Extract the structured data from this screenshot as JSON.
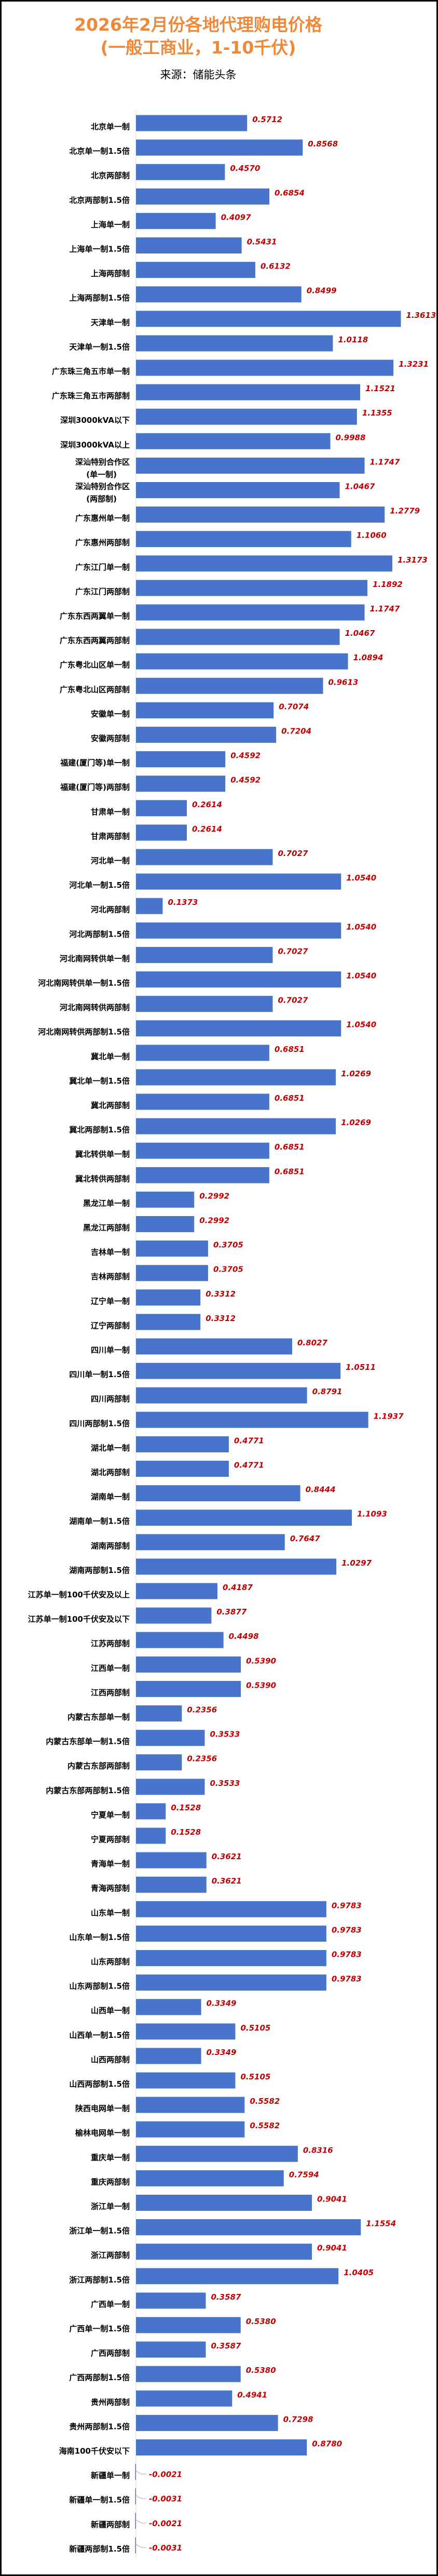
{
  "title_line1": "2026年2月份各地代理购电价格",
  "title_line2": "(一般工商业，1-10千伏)",
  "source": "来源：储能头条",
  "watermark": "储能头条",
  "colors": {
    "bar": "#4874CB",
    "value_label": "#C00000",
    "title": "#F0883A",
    "axis": "#D9D9D9"
  },
  "chart_data": {
    "type": "bar",
    "orientation": "horizontal",
    "title": "2026年2月份各地代理购电价格(一般工商业，1-10千伏)",
    "grid": false,
    "legend": "none",
    "categories": [
      "北京单一制",
      "北京单一制1.5倍",
      "北京两部制",
      "北京两部制1.5倍",
      "上海单一制",
      "上海单一制1.5倍",
      "上海两部制",
      "上海两部制1.5倍",
      "天津单一制",
      "天津单一制1.5倍",
      "广东珠三角五市单一制",
      "广东珠三角五市两部制",
      "深圳3000kVA以下",
      "深圳3000kVA以上",
      "深汕特别合作区\n(单一制)",
      "深汕特别合作区\n(两部制)",
      "广东惠州单一制",
      "广东惠州两部制",
      "广东江门单一制",
      "广东江门两部制",
      "广东东西两翼单一制",
      "广东东西两翼两部制",
      "广东粤北山区单一制",
      "广东粤北山区两部制",
      "安徽单一制",
      "安徽两部制",
      "福建(厦门等)单一制",
      "福建(厦门等)两部制",
      "甘肃单一制",
      "甘肃两部制",
      "河北单一制",
      "河北单一制1.5倍",
      "河北两部制",
      "河北两部制1.5倍",
      "河北南网转供单一制",
      "河北南网转供单一制1.5倍",
      "河北南网转供两部制",
      "河北南网转供两部制1.5倍",
      "冀北单一制",
      "冀北单一制1.5倍",
      "冀北两部制",
      "冀北两部制1.5倍",
      "冀北转供单一制",
      "冀北转供两部制",
      "黑龙江单一制",
      "黑龙江两部制",
      "吉林单一制",
      "吉林两部制",
      "辽宁单一制",
      "辽宁两部制",
      "四川单一制",
      "四川单一制1.5倍",
      "四川两部制",
      "四川两部制1.5倍",
      "湖北单一制",
      "湖北两部制",
      "湖南单一制",
      "湖南单一制1.5倍",
      "湖南两部制",
      "湖南两部制1.5倍",
      "江苏单一制100千伏安及以上",
      "江苏单一制100千伏安及以下",
      "江苏两部制",
      "江西单一制",
      "江西两部制",
      "内蒙古东部单一制",
      "内蒙古东部单一制1.5倍",
      "内蒙古东部两部制",
      "内蒙古东部两部制1.5倍",
      "宁夏单一制",
      "宁夏两部制",
      "青海单一制",
      "青海两部制",
      "山东单一制",
      "山东单一制1.5倍",
      "山东两部制",
      "山东两部制1.5倍",
      "山西单一制",
      "山西单一制1.5倍",
      "山西两部制",
      "山西两部制1.5倍",
      "陕西电网单一制",
      "榆林电网单一制",
      "重庆单一制",
      "重庆两部制",
      "浙江单一制",
      "浙江单一制1.5倍",
      "浙江两部制",
      "浙江两部制1.5倍",
      "广西单一制",
      "广西单一制1.5倍",
      "广西两部制",
      "广西两部制1.5倍",
      "贵州两部制",
      "贵州两部制1.5倍",
      "海南100千伏安以下",
      "新疆单一制",
      "新疆单一制1.5倍",
      "新疆两部制",
      "新疆两部制1.5倍"
    ],
    "values": [
      0.5712,
      0.8568,
      0.457,
      0.6854,
      0.4097,
      0.5431,
      0.6132,
      0.8499,
      1.3613,
      1.0118,
      1.3231,
      1.1521,
      1.1355,
      0.9988,
      1.1747,
      1.0467,
      1.2779,
      1.106,
      1.3173,
      1.1892,
      1.1747,
      1.0467,
      1.0894,
      0.9613,
      0.7074,
      0.7204,
      0.4592,
      0.4592,
      0.2614,
      0.2614,
      0.7027,
      1.054,
      0.1373,
      1.054,
      0.7027,
      1.054,
      0.7027,
      1.054,
      0.6851,
      1.0269,
      0.6851,
      1.0269,
      0.6851,
      0.6851,
      0.2992,
      0.2992,
      0.3705,
      0.3705,
      0.3312,
      0.3312,
      0.8027,
      1.0511,
      0.8791,
      1.1937,
      0.4771,
      0.4771,
      0.8444,
      1.1093,
      0.7647,
      1.0297,
      0.4187,
      0.3877,
      0.4498,
      0.539,
      0.539,
      0.2356,
      0.3533,
      0.2356,
      0.3533,
      0.1528,
      0.1528,
      0.3621,
      0.3621,
      0.9783,
      0.9783,
      0.9783,
      0.9783,
      0.3349,
      0.5105,
      0.3349,
      0.5105,
      0.5582,
      0.5582,
      0.8316,
      0.7594,
      0.9041,
      1.1554,
      0.9041,
      1.0405,
      0.3587,
      0.538,
      0.3587,
      0.538,
      0.4941,
      0.7298,
      0.878,
      -0.0021,
      -0.0031,
      -0.0021,
      -0.0031
    ],
    "value_labels": [
      "0.5712",
      "0.8568",
      "0.4570",
      "0.6854",
      "0.4097",
      "0.5431",
      "0.6132",
      "0.8499",
      "1.3613",
      "1.0118",
      "1.3231",
      "1.1521",
      "1.1355",
      "0.9988",
      "1.1747",
      "1.0467",
      "1.2779",
      "1.1060",
      "1.3173",
      "1.1892",
      "1.1747",
      "1.0467",
      "1.0894",
      "0.9613",
      "0.7074",
      "0.7204",
      "0.4592",
      "0.4592",
      "0.2614",
      "0.2614",
      "0.7027",
      "1.0540",
      "0.1373",
      "1.0540",
      "0.7027",
      "1.0540",
      "0.7027",
      "1.0540",
      "0.6851",
      "1.0269",
      "0.6851",
      "1.0269",
      "0.6851",
      "0.6851",
      "0.2992",
      "0.2992",
      "0.3705",
      "0.3705",
      "0.3312",
      "0.3312",
      "0.8027",
      "1.0511",
      "0.8791",
      "1.1937",
      "0.4771",
      "0.4771",
      "0.8444",
      "1.1093",
      "0.7647",
      "1.0297",
      "0.4187",
      "0.3877",
      "0.4498",
      "0.5390",
      "0.5390",
      "0.2356",
      "0.3533",
      "0.2356",
      "0.3533",
      "0.1528",
      "0.1528",
      "0.3621",
      "0.3621",
      "0.9783",
      "0.9783",
      "0.9783",
      "0.9783",
      "0.3349",
      "0.5105",
      "0.3349",
      "0.5105",
      "0.5582",
      "0.5582",
      "0.8316",
      "0.7594",
      "0.9041",
      "1.1554",
      "0.9041",
      "1.0405",
      "0.3587",
      "0.5380",
      "0.3587",
      "0.5380",
      "0.4941",
      "0.7298",
      "0.8780",
      "-0.0021",
      "-0.0031",
      "-0.0021",
      "-0.0031"
    ]
  }
}
